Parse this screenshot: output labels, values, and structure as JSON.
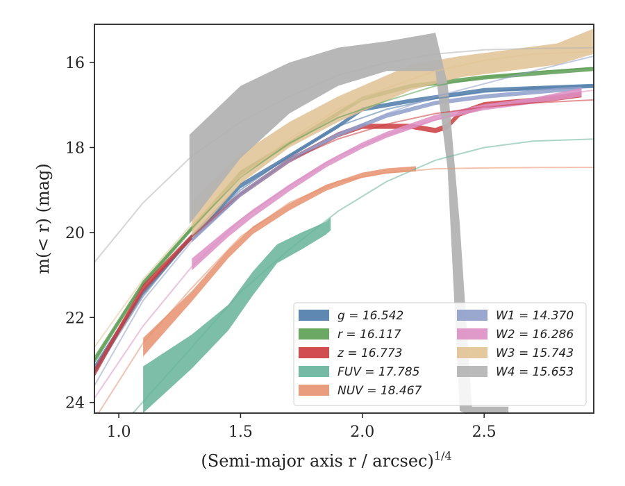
{
  "chart_data": {
    "type": "line",
    "xlabel": "(Semi-major axis r / arcsec)",
    "xlabel_exp": "1/4",
    "ylabel": "m(< r) (mag)",
    "xlim": [
      0.9,
      2.95
    ],
    "ylim": [
      24.25,
      15.1
    ],
    "y_inverted": true,
    "xticks": [
      1.0,
      1.5,
      2.0,
      2.5
    ],
    "xtick_labels": [
      "1.0",
      "1.5",
      "2.0",
      "2.5"
    ],
    "yticks": [
      16,
      18,
      20,
      22,
      24
    ],
    "ytick_labels": [
      "16",
      "18",
      "20",
      "22",
      "24"
    ],
    "legend_position": "lower right",
    "series": [
      {
        "name": "g",
        "label": "g = 16.542",
        "color": "#4c7aa8",
        "band": {
          "x": [
            0.9,
            1.1,
            1.3,
            1.5,
            1.7,
            1.9,
            2.0,
            2.2,
            2.5,
            2.95
          ],
          "y": [
            23.2,
            21.4,
            20.1,
            18.9,
            18.2,
            17.5,
            17.1,
            16.9,
            16.65,
            16.55
          ],
          "w": [
            0.09,
            0.07,
            0.06,
            0.06,
            0.05,
            0.05,
            0.05,
            0.05,
            0.05,
            0.05
          ]
        },
        "model": {
          "x": [
            0.9,
            1.1,
            1.3,
            1.5,
            1.7,
            1.9,
            2.1,
            2.3,
            2.5,
            2.7,
            2.95
          ],
          "y": [
            23.3,
            21.5,
            20.1,
            19.0,
            18.2,
            17.5,
            17.1,
            16.85,
            16.7,
            16.6,
            16.54
          ]
        }
      },
      {
        "name": "r",
        "label": "r = 16.117",
        "color": "#5a9e52",
        "band": {
          "x": [
            0.9,
            1.1,
            1.3,
            1.5,
            1.7,
            1.9,
            2.0,
            2.2,
            2.5,
            2.95
          ],
          "y": [
            23.0,
            21.2,
            19.9,
            18.6,
            17.9,
            17.2,
            16.85,
            16.55,
            16.35,
            16.15
          ],
          "w": [
            0.09,
            0.07,
            0.06,
            0.06,
            0.05,
            0.05,
            0.05,
            0.05,
            0.05,
            0.05
          ]
        },
        "model": {
          "x": [
            0.9,
            1.1,
            1.3,
            1.5,
            1.7,
            1.9,
            2.1,
            2.3,
            2.5,
            2.7,
            2.95
          ],
          "y": [
            23.0,
            21.2,
            19.9,
            18.7,
            17.9,
            17.3,
            16.9,
            16.55,
            16.35,
            16.22,
            16.12
          ]
        }
      },
      {
        "name": "z",
        "label": "z = 16.773",
        "color": "#cc3a3d",
        "band": {
          "x": [
            0.9,
            1.1,
            1.3,
            1.5,
            1.7,
            1.9,
            2.0,
            2.1,
            2.2,
            2.3,
            2.35,
            2.4,
            2.5,
            2.6,
            2.7,
            2.9
          ],
          "y": [
            23.3,
            21.3,
            20.1,
            19.1,
            18.3,
            17.7,
            17.5,
            17.5,
            17.5,
            17.6,
            17.5,
            17.2,
            17.0,
            16.95,
            16.9,
            16.75
          ],
          "w": [
            0.1,
            0.08,
            0.07,
            0.06,
            0.06,
            0.06,
            0.06,
            0.06,
            0.06,
            0.06,
            0.07,
            0.07,
            0.07,
            0.07,
            0.07,
            0.07
          ]
        },
        "model": {
          "x": [
            0.9,
            1.1,
            1.3,
            1.5,
            1.7,
            1.9,
            2.1,
            2.3,
            2.5,
            2.7,
            2.95
          ],
          "y": [
            23.3,
            21.4,
            20.1,
            19.1,
            18.3,
            17.8,
            17.45,
            17.2,
            17.05,
            16.95,
            16.88
          ]
        }
      },
      {
        "name": "FUV",
        "label": "FUV = 17.785",
        "color": "#66b39a",
        "band": {
          "x": [
            1.1,
            1.3,
            1.45,
            1.55,
            1.65,
            1.75,
            1.85,
            1.87
          ],
          "y": [
            23.7,
            22.8,
            22.0,
            21.2,
            20.5,
            20.2,
            19.9,
            19.8
          ],
          "w": [
            0.55,
            0.4,
            0.3,
            0.28,
            0.22,
            0.2,
            0.15,
            0.15
          ]
        },
        "model": {
          "x": [
            1.05,
            1.3,
            1.5,
            1.7,
            1.9,
            2.1,
            2.3,
            2.5,
            2.7,
            2.95
          ],
          "y": [
            24.3,
            22.7,
            21.4,
            20.4,
            19.5,
            18.8,
            18.3,
            18.0,
            17.85,
            17.8
          ]
        }
      },
      {
        "name": "NUV",
        "label": "NUV = 18.467",
        "color": "#e8926e",
        "band": {
          "x": [
            1.1,
            1.3,
            1.45,
            1.55,
            1.7,
            1.85,
            2.0,
            2.1,
            2.22
          ],
          "y": [
            22.7,
            21.5,
            20.5,
            19.95,
            19.4,
            18.95,
            18.65,
            18.55,
            18.5
          ],
          "w": [
            0.22,
            0.12,
            0.1,
            0.09,
            0.08,
            0.07,
            0.06,
            0.06,
            0.06
          ]
        },
        "model": {
          "x": [
            0.9,
            1.1,
            1.3,
            1.5,
            1.7,
            1.9,
            2.1,
            2.3,
            2.5,
            2.7,
            2.95
          ],
          "y": [
            24.4,
            22.6,
            21.3,
            20.1,
            19.3,
            18.8,
            18.6,
            18.5,
            18.48,
            18.47,
            18.467
          ]
        }
      },
      {
        "name": "W1",
        "label": "W1 = 14.370",
        "color": "#8f9fcb",
        "band": {
          "x": [
            1.3,
            1.5,
            1.7,
            1.9,
            2.1,
            2.3,
            2.5,
            2.7,
            2.9
          ],
          "y": [
            20.15,
            19.1,
            18.3,
            17.7,
            17.25,
            16.95,
            16.8,
            16.7,
            16.6
          ],
          "w": [
            0.08,
            0.06,
            0.05,
            0.05,
            0.05,
            0.05,
            0.05,
            0.05,
            0.05
          ]
        },
        "model": {
          "x": [
            0.9,
            1.1,
            1.3,
            1.5,
            1.7,
            1.9,
            2.1,
            2.3,
            2.5,
            2.7,
            2.95
          ],
          "y": [
            23.6,
            21.6,
            20.2,
            19.1,
            18.3,
            17.7,
            17.2,
            16.8,
            16.5,
            16.2,
            15.85
          ]
        }
      },
      {
        "name": "W2",
        "label": "W2 = 16.286",
        "color": "#dd8fc4",
        "band": {
          "x": [
            1.3,
            1.45,
            1.55,
            1.7,
            1.85,
            2.0,
            2.1,
            2.3,
            2.5,
            2.7,
            2.9
          ],
          "y": [
            20.75,
            20.0,
            19.55,
            18.95,
            18.4,
            17.95,
            17.7,
            17.3,
            17.05,
            16.9,
            16.7
          ],
          "w": [
            0.14,
            0.1,
            0.09,
            0.08,
            0.07,
            0.07,
            0.07,
            0.07,
            0.07,
            0.07,
            0.1
          ]
        },
        "model": {
          "x": [
            0.9,
            1.1,
            1.3,
            1.5,
            1.7,
            1.9,
            2.1,
            2.3,
            2.5,
            2.7,
            2.95
          ],
          "y": [
            23.9,
            22.2,
            20.8,
            19.7,
            18.9,
            18.2,
            17.7,
            17.35,
            17.05,
            16.85,
            16.65
          ]
        }
      },
      {
        "name": "W3",
        "label": "W3 = 15.743",
        "color": "#e1c293",
        "band": {
          "x": [
            1.3,
            1.5,
            1.7,
            1.9,
            2.0,
            2.2,
            2.4,
            2.6,
            2.8,
            2.95
          ],
          "y": [
            19.7,
            18.5,
            17.7,
            17.1,
            16.85,
            16.35,
            16.1,
            15.95,
            15.8,
            15.5
          ],
          "w": [
            0.45,
            0.35,
            0.3,
            0.3,
            0.3,
            0.3,
            0.25,
            0.25,
            0.25,
            0.3
          ]
        },
        "model": {
          "x": [
            0.9,
            1.1,
            1.3,
            1.5,
            1.7,
            1.9,
            2.1,
            2.3,
            2.5,
            2.7,
            2.95
          ],
          "y": [
            22.7,
            21.1,
            19.8,
            18.7,
            17.8,
            17.1,
            16.6,
            16.2,
            15.95,
            15.8,
            15.74
          ]
        }
      },
      {
        "name": "W4",
        "label": "W4 = 15.653",
        "color": "#b3b3b3",
        "band": {
          "x": [
            1.29,
            1.5,
            1.7,
            1.9,
            2.1,
            2.3,
            2.35,
            2.4,
            2.45,
            2.5,
            2.55,
            2.6
          ],
          "y": [
            18.75,
            17.4,
            16.6,
            16.1,
            15.85,
            15.75,
            17.5,
            22.0,
            24.2,
            24.2,
            24.2,
            24.2
          ],
          "w": [
            1.05,
            0.85,
            0.6,
            0.45,
            0.35,
            0.45,
            1.0,
            2.2,
            0.1,
            0.1,
            0.1,
            0.1
          ]
        },
        "model": {
          "x": [
            0.9,
            1.1,
            1.3,
            1.5,
            1.7,
            1.9,
            2.1,
            2.3,
            2.5,
            2.7,
            2.95
          ],
          "y": [
            20.7,
            19.3,
            18.2,
            17.4,
            16.8,
            16.3,
            16.0,
            15.8,
            15.7,
            15.67,
            15.65
          ]
        }
      }
    ]
  }
}
